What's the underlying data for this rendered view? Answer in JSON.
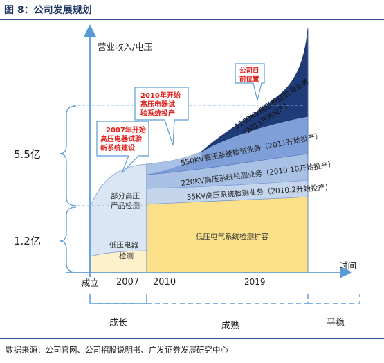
{
  "figure": {
    "title": "图 8：公司发展规划",
    "source": "数据来源：公司官网、公司招股说明书、广发证券发展研究中心"
  },
  "axes": {
    "y_label": "营业收入/电压",
    "x_label": "时间",
    "x_ticks": [
      "成立",
      "2007",
      "2010",
      "2019"
    ],
    "y_ticks": [
      "5.5亿",
      "1.2亿"
    ]
  },
  "regions": {
    "low_voltage_tech": "低压电器检测",
    "partial_high_voltage": "部分高压产品检测",
    "low_voltage_expansion": "低压电气系统检测扩容",
    "kv35": "35KV高压系统检测业务（2010.2开始投产）",
    "kv220": "220KV高压系统检测业务（2010.10开始投产）",
    "kv550": "550KV高压系统检测业务（2011开始投产）",
    "kv1100": "1100KV高压系统检测业务（2013开始投产）"
  },
  "callouts": {
    "y2007": "2007年开始高压电器试验新系统建设",
    "y2010": "2010年开始高压电器试验系统投产",
    "current": "公司目前位置"
  },
  "phases": {
    "growth": "成长",
    "mature": "成熟",
    "stable": "平稳"
  },
  "colors": {
    "axis": "#5b9bd5",
    "callout_text": "#e0201c",
    "low_voltage_fill": "#fdf1cc",
    "expansion_fill": "#fbe08a",
    "light_blue": "#dae6f3",
    "band_35": "#c4d5ec",
    "band_220": "#a9c1e4",
    "band_550": "#7f9fd8",
    "band_1100": "#1f3b78"
  }
}
